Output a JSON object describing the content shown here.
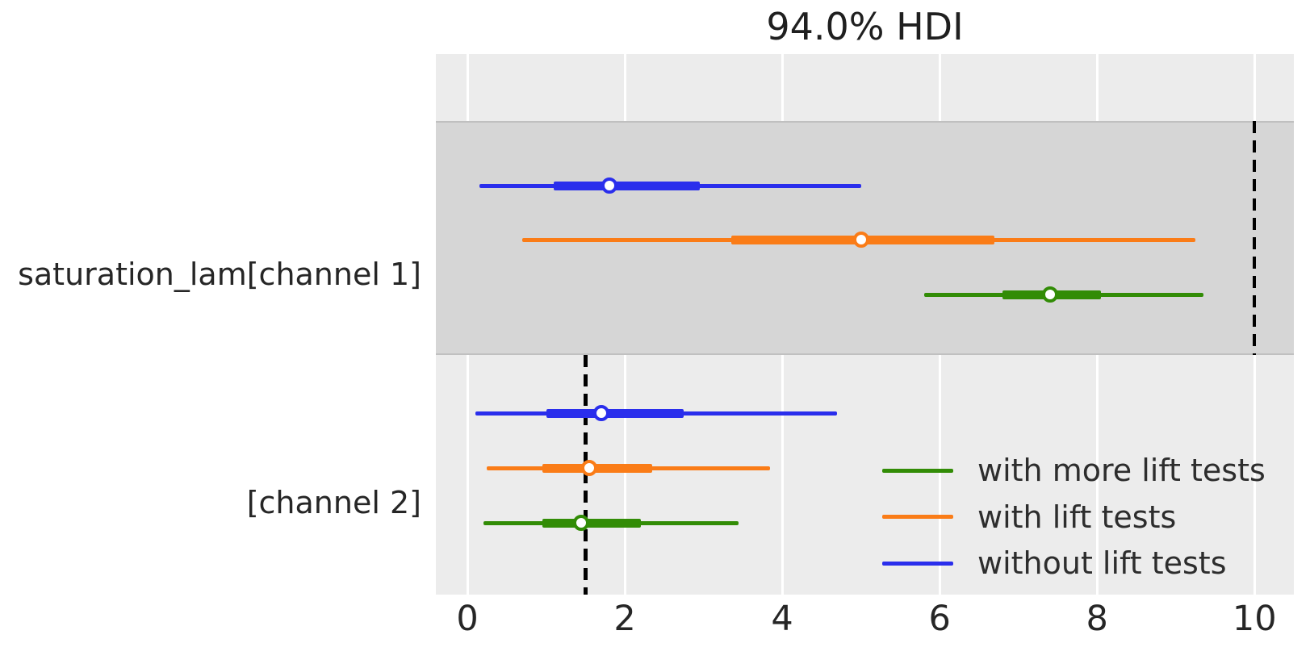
{
  "figure": {
    "background": "#ffffff",
    "axes_background": "#ececec",
    "shaded_band_color": "#d6d6d6",
    "gridline_color": "#ffffff",
    "reference_line_color": "#000000"
  },
  "chart_data": {
    "type": "forest",
    "title": "94.0% HDI",
    "xlabel": "",
    "ylabel": "",
    "xlim": [
      -0.4,
      10.5
    ],
    "xticks": [
      0,
      2,
      4,
      6,
      8,
      10
    ],
    "xtick_labels": [
      "0",
      "2",
      "4",
      "6",
      "8",
      "10"
    ],
    "grid": true,
    "legend_position": "lower right",
    "rows": [
      {
        "label": "saturation_lam[channel 1]",
        "shaded": true,
        "reference_value": 10.0,
        "series": [
          {
            "name": "without lift tests",
            "color": "#2a2eec",
            "hdi_94": [
              0.15,
              5.0
            ],
            "quartile": [
              1.1,
              2.95
            ],
            "median": 1.8
          },
          {
            "name": "with lift tests",
            "color": "#fa7c17",
            "hdi_94": [
              0.7,
              9.25
            ],
            "quartile": [
              3.35,
              6.7
            ],
            "median": 5.0
          },
          {
            "name": "with more lift tests",
            "color": "#328c06",
            "hdi_94": [
              5.8,
              9.35
            ],
            "quartile": [
              6.8,
              8.05
            ],
            "median": 7.4
          }
        ]
      },
      {
        "label": "[channel 2]",
        "shaded": false,
        "reference_value": 1.5,
        "series": [
          {
            "name": "without lift tests",
            "color": "#2a2eec",
            "hdi_94": [
              0.1,
              4.7
            ],
            "quartile": [
              1.0,
              2.75
            ],
            "median": 1.7
          },
          {
            "name": "with lift tests",
            "color": "#fa7c17",
            "hdi_94": [
              0.25,
              3.85
            ],
            "quartile": [
              0.95,
              2.35
            ],
            "median": 1.55
          },
          {
            "name": "with more lift tests",
            "color": "#328c06",
            "hdi_94": [
              0.2,
              3.45
            ],
            "quartile": [
              0.95,
              2.2
            ],
            "median": 1.45
          }
        ]
      }
    ],
    "legend": [
      {
        "label": "with more lift tests",
        "color": "#328c06"
      },
      {
        "label": "with lift tests",
        "color": "#fa7c17"
      },
      {
        "label": "without lift tests",
        "color": "#2a2eec"
      }
    ]
  }
}
